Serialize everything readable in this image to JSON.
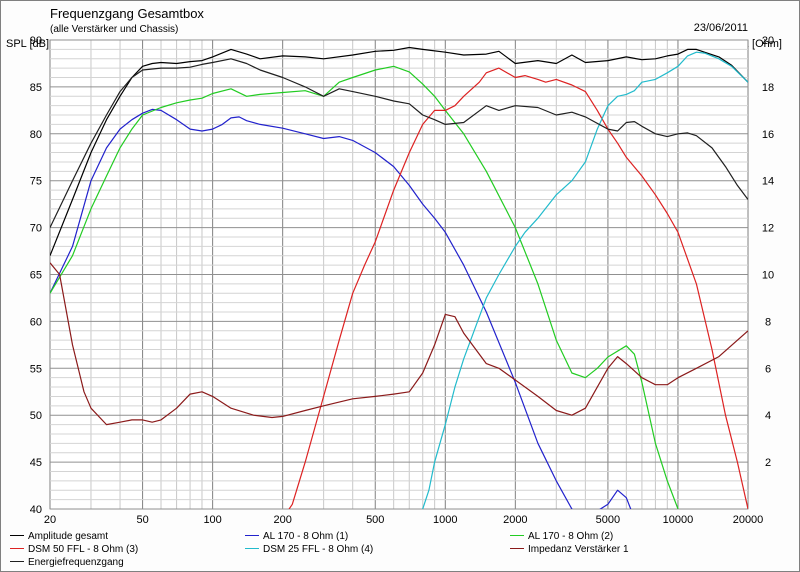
{
  "header": {
    "title": "Frequenzgang Gesamtbox",
    "subtitle": "(alle Verstärker und Chassis)",
    "date": "23/06/2011",
    "y_left_label": "SPL [dB]",
    "y_right_label": "Z [Ohm]"
  },
  "legend": [
    {
      "name": "Amplitude gesamt",
      "color": "#000000"
    },
    {
      "name": "AL 170 - 8 Ohm (1)",
      "color": "#2222cc"
    },
    {
      "name": "AL 170 - 8 Ohm (2)",
      "color": "#22cc22"
    },
    {
      "name": "DSM 50 FFL - 8 Ohm (3)",
      "color": "#dd2222"
    },
    {
      "name": "DSM 25 FFL - 8 Ohm (4)",
      "color": "#22bbcc"
    },
    {
      "name": "Impedanz Verstärker 1",
      "color": "#8b1a1a"
    },
    {
      "name": "Energiefrequenzgang",
      "color": "#202020"
    }
  ],
  "chart_data": {
    "type": "line",
    "x_scale": "log",
    "xlim": [
      20,
      20000
    ],
    "ylim": [
      40,
      90
    ],
    "y2lim": [
      0,
      20
    ],
    "x_ticks": [
      20,
      50,
      100,
      200,
      500,
      1000,
      2000,
      5000,
      10000,
      20000
    ],
    "x_tick_labels": [
      "20",
      "50",
      "100",
      "200",
      "500",
      "1000",
      "2000",
      "5000",
      "10000",
      "20000"
    ],
    "y_ticks": [
      40,
      45,
      50,
      55,
      60,
      65,
      70,
      75,
      80,
      85,
      90
    ],
    "y2_ticks": [
      2,
      4,
      6,
      8,
      10,
      12,
      14,
      16,
      18,
      20
    ],
    "grid": true,
    "series": [
      {
        "name": "Amplitude gesamt",
        "color": "#000000",
        "axis": "left",
        "points": [
          [
            20,
            67
          ],
          [
            25,
            73
          ],
          [
            30,
            78
          ],
          [
            35,
            81.5
          ],
          [
            40,
            84
          ],
          [
            45,
            86
          ],
          [
            50,
            87.2
          ],
          [
            55,
            87.5
          ],
          [
            60,
            87.6
          ],
          [
            70,
            87.5
          ],
          [
            80,
            87.7
          ],
          [
            90,
            87.8
          ],
          [
            100,
            88.2
          ],
          [
            120,
            89
          ],
          [
            140,
            88.5
          ],
          [
            160,
            88
          ],
          [
            200,
            88.3
          ],
          [
            250,
            88.2
          ],
          [
            300,
            88
          ],
          [
            400,
            88.4
          ],
          [
            500,
            88.8
          ],
          [
            600,
            88.9
          ],
          [
            700,
            89.2
          ],
          [
            800,
            89
          ],
          [
            1000,
            88.7
          ],
          [
            1200,
            88.4
          ],
          [
            1500,
            88.5
          ],
          [
            1700,
            88.8
          ],
          [
            2000,
            87.5
          ],
          [
            2500,
            87.8
          ],
          [
            3000,
            87.5
          ],
          [
            3500,
            88.4
          ],
          [
            4000,
            87.6
          ],
          [
            5000,
            87.8
          ],
          [
            6000,
            88.2
          ],
          [
            7000,
            87.9
          ],
          [
            8000,
            88
          ],
          [
            9000,
            88.3
          ],
          [
            10000,
            88.5
          ],
          [
            11000,
            89
          ],
          [
            12000,
            89
          ],
          [
            13000,
            88.7
          ],
          [
            15000,
            88.2
          ],
          [
            17000,
            87.3
          ],
          [
            20000,
            85.5
          ]
        ]
      },
      {
        "name": "AL 170 - 8 Ohm (1)",
        "color": "#2222cc",
        "axis": "left",
        "points": [
          [
            20,
            63
          ],
          [
            25,
            68
          ],
          [
            30,
            75
          ],
          [
            35,
            78.5
          ],
          [
            40,
            80.5
          ],
          [
            45,
            81.5
          ],
          [
            50,
            82.2
          ],
          [
            55,
            82.6
          ],
          [
            60,
            82.5
          ],
          [
            70,
            81.5
          ],
          [
            80,
            80.5
          ],
          [
            90,
            80.3
          ],
          [
            100,
            80.5
          ],
          [
            110,
            81
          ],
          [
            120,
            81.7
          ],
          [
            130,
            81.8
          ],
          [
            140,
            81.4
          ],
          [
            160,
            81
          ],
          [
            200,
            80.6
          ],
          [
            250,
            80
          ],
          [
            300,
            79.5
          ],
          [
            350,
            79.7
          ],
          [
            400,
            79.3
          ],
          [
            500,
            78
          ],
          [
            600,
            76.5
          ],
          [
            700,
            74.5
          ],
          [
            800,
            72.5
          ],
          [
            900,
            71
          ],
          [
            1000,
            69.5
          ],
          [
            1200,
            66
          ],
          [
            1500,
            61
          ],
          [
            2000,
            53.5
          ],
          [
            2500,
            47
          ],
          [
            3000,
            43
          ],
          [
            3500,
            40
          ],
          [
            4000,
            39
          ],
          [
            5000,
            40.5
          ],
          [
            5500,
            42
          ],
          [
            6000,
            41.2
          ],
          [
            6500,
            39
          ],
          [
            7000,
            38
          ]
        ]
      },
      {
        "name": "AL 170 - 8 Ohm (2)",
        "color": "#22cc22",
        "axis": "left",
        "points": [
          [
            20,
            63
          ],
          [
            25,
            67
          ],
          [
            30,
            72
          ],
          [
            35,
            75.5
          ],
          [
            40,
            78.5
          ],
          [
            45,
            80.5
          ],
          [
            50,
            82
          ],
          [
            60,
            82.8
          ],
          [
            70,
            83.3
          ],
          [
            80,
            83.6
          ],
          [
            90,
            83.8
          ],
          [
            100,
            84.3
          ],
          [
            120,
            84.8
          ],
          [
            140,
            84
          ],
          [
            160,
            84.2
          ],
          [
            200,
            84.4
          ],
          [
            250,
            84.6
          ],
          [
            300,
            84
          ],
          [
            350,
            85.5
          ],
          [
            400,
            86
          ],
          [
            500,
            86.8
          ],
          [
            600,
            87.2
          ],
          [
            700,
            86.6
          ],
          [
            800,
            85.3
          ],
          [
            900,
            84
          ],
          [
            1000,
            82.5
          ],
          [
            1200,
            80
          ],
          [
            1500,
            76
          ],
          [
            2000,
            70
          ],
          [
            2500,
            64
          ],
          [
            3000,
            58
          ],
          [
            3500,
            54.5
          ],
          [
            4000,
            54
          ],
          [
            4500,
            55
          ],
          [
            5000,
            56.2
          ],
          [
            6000,
            57.4
          ],
          [
            6500,
            56.5
          ],
          [
            7000,
            53.5
          ],
          [
            8000,
            47
          ],
          [
            9000,
            43
          ],
          [
            10000,
            40
          ],
          [
            11000,
            38
          ]
        ]
      },
      {
        "name": "DSM 50 FFL - 8 Ohm (3)",
        "color": "#dd2222",
        "axis": "left",
        "points": [
          [
            150,
            38
          ],
          [
            200,
            39
          ],
          [
            220,
            40.5
          ],
          [
            250,
            45
          ],
          [
            300,
            52
          ],
          [
            350,
            58
          ],
          [
            400,
            63
          ],
          [
            450,
            66
          ],
          [
            500,
            68.5
          ],
          [
            600,
            74
          ],
          [
            700,
            78
          ],
          [
            800,
            81
          ],
          [
            900,
            82.5
          ],
          [
            1000,
            82.5
          ],
          [
            1100,
            83
          ],
          [
            1200,
            84
          ],
          [
            1400,
            85.5
          ],
          [
            1500,
            86.5
          ],
          [
            1700,
            87
          ],
          [
            2000,
            86
          ],
          [
            2200,
            86.2
          ],
          [
            2500,
            85.8
          ],
          [
            2700,
            85.5
          ],
          [
            3000,
            85.8
          ],
          [
            3500,
            85.2
          ],
          [
            4000,
            84.5
          ],
          [
            4500,
            82.5
          ],
          [
            5000,
            80.5
          ],
          [
            5500,
            79
          ],
          [
            6000,
            77.5
          ],
          [
            7000,
            75.5
          ],
          [
            8000,
            73.5
          ],
          [
            9000,
            71.5
          ],
          [
            10000,
            69.5
          ],
          [
            12000,
            64
          ],
          [
            14000,
            57
          ],
          [
            16000,
            50
          ],
          [
            18000,
            45
          ],
          [
            20000,
            40
          ]
        ]
      },
      {
        "name": "DSM 25 FFL - 8 Ohm (4)",
        "color": "#22bbcc",
        "axis": "left",
        "points": [
          [
            700,
            38
          ],
          [
            800,
            40
          ],
          [
            850,
            42
          ],
          [
            900,
            45
          ],
          [
            1000,
            49
          ],
          [
            1100,
            53
          ],
          [
            1200,
            56
          ],
          [
            1500,
            62.5
          ],
          [
            1700,
            65
          ],
          [
            2000,
            68
          ],
          [
            2200,
            69.5
          ],
          [
            2500,
            71
          ],
          [
            3000,
            73.5
          ],
          [
            3500,
            75
          ],
          [
            4000,
            77
          ],
          [
            4500,
            80.5
          ],
          [
            5000,
            83
          ],
          [
            5500,
            84
          ],
          [
            6000,
            84.2
          ],
          [
            6500,
            84.6
          ],
          [
            7000,
            85.5
          ],
          [
            8000,
            85.8
          ],
          [
            9000,
            86.5
          ],
          [
            10000,
            87.2
          ],
          [
            11000,
            88.3
          ],
          [
            12000,
            88.7
          ],
          [
            13000,
            88.6
          ],
          [
            15000,
            88
          ],
          [
            17000,
            87.2
          ],
          [
            20000,
            85.5
          ]
        ]
      },
      {
        "name": "Impedanz Verstärker 1",
        "color": "#8b1a1a",
        "axis": "right",
        "points": [
          [
            20,
            10.5
          ],
          [
            22,
            10
          ],
          [
            25,
            7
          ],
          [
            28,
            5
          ],
          [
            30,
            4.3
          ],
          [
            35,
            3.6
          ],
          [
            40,
            3.7
          ],
          [
            45,
            3.8
          ],
          [
            50,
            3.8
          ],
          [
            55,
            3.7
          ],
          [
            60,
            3.8
          ],
          [
            70,
            4.3
          ],
          [
            80,
            4.9
          ],
          [
            90,
            5
          ],
          [
            100,
            4.8
          ],
          [
            120,
            4.3
          ],
          [
            150,
            4
          ],
          [
            180,
            3.9
          ],
          [
            200,
            3.95
          ],
          [
            250,
            4.2
          ],
          [
            300,
            4.4
          ],
          [
            400,
            4.7
          ],
          [
            500,
            4.8
          ],
          [
            600,
            4.9
          ],
          [
            700,
            5
          ],
          [
            800,
            5.8
          ],
          [
            900,
            7
          ],
          [
            1000,
            8.3
          ],
          [
            1100,
            8.2
          ],
          [
            1200,
            7.5
          ],
          [
            1500,
            6.2
          ],
          [
            1700,
            6
          ],
          [
            2000,
            5.5
          ],
          [
            2500,
            4.8
          ],
          [
            3000,
            4.2
          ],
          [
            3500,
            4
          ],
          [
            4000,
            4.3
          ],
          [
            4500,
            5.2
          ],
          [
            5000,
            6
          ],
          [
            5500,
            6.5
          ],
          [
            6000,
            6.2
          ],
          [
            7000,
            5.6
          ],
          [
            8000,
            5.3
          ],
          [
            9000,
            5.3
          ],
          [
            10000,
            5.6
          ],
          [
            12000,
            6
          ],
          [
            15000,
            6.5
          ],
          [
            20000,
            7.6
          ]
        ]
      },
      {
        "name": "Energiefrequenzgang",
        "color": "#202020",
        "axis": "left",
        "points": [
          [
            20,
            70
          ],
          [
            25,
            75
          ],
          [
            30,
            79
          ],
          [
            35,
            82
          ],
          [
            40,
            84.5
          ],
          [
            45,
            86
          ],
          [
            50,
            86.8
          ],
          [
            60,
            87
          ],
          [
            70,
            87
          ],
          [
            80,
            87.1
          ],
          [
            90,
            87.4
          ],
          [
            100,
            87.6
          ],
          [
            120,
            88
          ],
          [
            140,
            87.5
          ],
          [
            160,
            86.8
          ],
          [
            200,
            86
          ],
          [
            250,
            85
          ],
          [
            300,
            84
          ],
          [
            350,
            84.8
          ],
          [
            400,
            84.5
          ],
          [
            500,
            84
          ],
          [
            600,
            83.5
          ],
          [
            700,
            83.2
          ],
          [
            800,
            82
          ],
          [
            900,
            81.5
          ],
          [
            1000,
            81
          ],
          [
            1200,
            81.2
          ],
          [
            1500,
            83
          ],
          [
            1700,
            82.5
          ],
          [
            2000,
            83
          ],
          [
            2500,
            82.8
          ],
          [
            3000,
            82
          ],
          [
            3500,
            82.3
          ],
          [
            4000,
            81.8
          ],
          [
            5000,
            80.5
          ],
          [
            5500,
            80.3
          ],
          [
            6000,
            81.2
          ],
          [
            6500,
            81.3
          ],
          [
            7000,
            80.8
          ],
          [
            8000,
            80
          ],
          [
            9000,
            79.7
          ],
          [
            10000,
            80
          ],
          [
            11000,
            80.1
          ],
          [
            12000,
            79.8
          ],
          [
            14000,
            78.5
          ],
          [
            16000,
            76.5
          ],
          [
            18000,
            74.5
          ],
          [
            20000,
            73
          ]
        ]
      }
    ]
  }
}
